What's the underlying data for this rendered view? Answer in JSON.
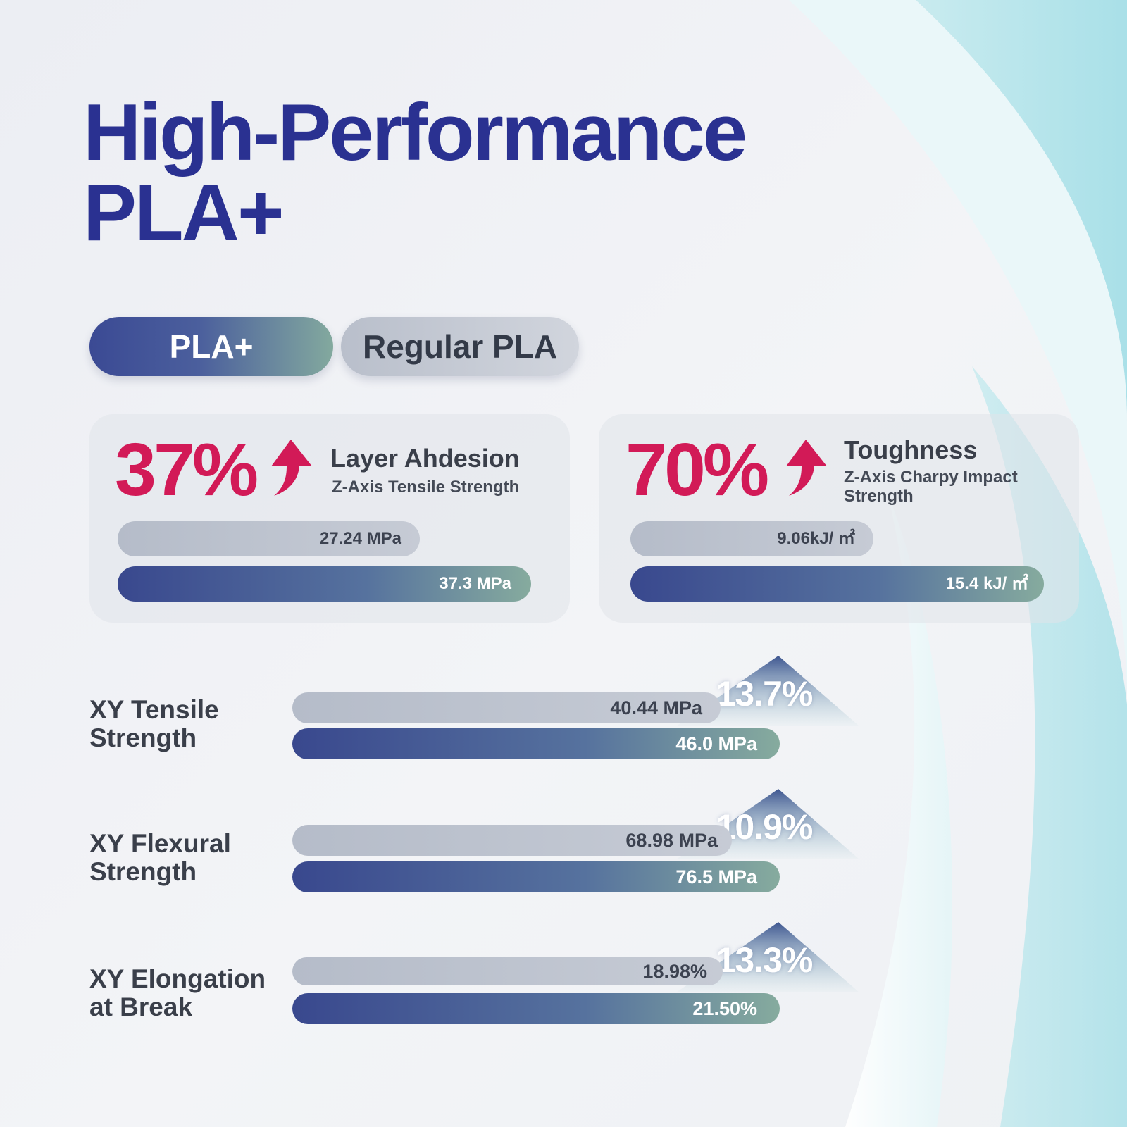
{
  "title": {
    "line1": "High-Performance",
    "line2": "PLA+"
  },
  "legend": {
    "plus_label": "PLA+",
    "regular_label": "Regular PLA"
  },
  "colors": {
    "title": "#2a3191",
    "accent_red": "#d21a57",
    "pla_plus_start": "#39488e",
    "pla_plus_end": "#86ab9e",
    "regular_pla": "#b9bfcb"
  },
  "chart_data": [
    {
      "type": "bar",
      "title": "Layer Ahdesion",
      "subtitle": "Z-Axis Tensile Strength",
      "improvement": "37%",
      "series": [
        {
          "name": "Regular PLA",
          "value": 27.24,
          "label": "27.24 MPa"
        },
        {
          "name": "PLA+",
          "value": 37.3,
          "label": "37.3 MPa"
        }
      ]
    },
    {
      "type": "bar",
      "title": "Toughness",
      "subtitle": "Z-Axis Charpy Impact Strength",
      "improvement": "70%",
      "series": [
        {
          "name": "Regular PLA",
          "value": 9.06,
          "label": "9.06kJ/ ㎡"
        },
        {
          "name": "PLA+",
          "value": 15.4,
          "label": "15.4 kJ/ ㎡"
        }
      ]
    },
    {
      "type": "bar",
      "title": "XY Tensile Strength",
      "improvement": "13.7%",
      "series": [
        {
          "name": "Regular PLA",
          "value": 40.44,
          "label": "40.44 MPa"
        },
        {
          "name": "PLA+",
          "value": 46.0,
          "label": "46.0 MPa"
        }
      ]
    },
    {
      "type": "bar",
      "title": "XY Flexural Strength",
      "improvement": "10.9%",
      "series": [
        {
          "name": "Regular PLA",
          "value": 68.98,
          "label": "68.98 MPa"
        },
        {
          "name": "PLA+",
          "value": 76.5,
          "label": "76.5 MPa"
        }
      ]
    },
    {
      "type": "bar",
      "title": "XY Elongation at Break",
      "improvement": "13.3%",
      "series": [
        {
          "name": "Regular PLA",
          "value": 18.98,
          "label": "18.98%"
        },
        {
          "name": "PLA+",
          "value": 21.5,
          "label": "21.50%"
        }
      ]
    }
  ],
  "rows": [
    {
      "line1": "XY Tensile",
      "line2": "Strength"
    },
    {
      "line1": "XY Flexural",
      "line2": "Strength"
    },
    {
      "line1": "XY Elongation",
      "line2": "at Break"
    }
  ],
  "cards": [
    {
      "subtitle_line1": "Z-Axis Tensile Strength",
      "subtitle_line2": ""
    },
    {
      "subtitle_line1": "Z-Axis Charpy Impact",
      "subtitle_line2": "Strength"
    }
  ]
}
